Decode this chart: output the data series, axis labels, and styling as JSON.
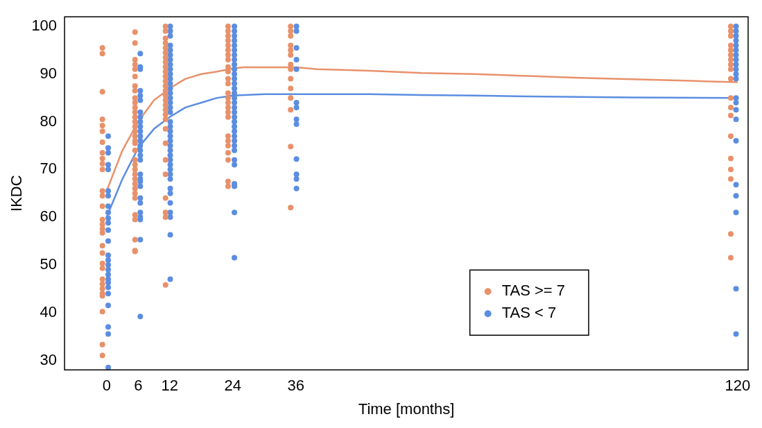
{
  "chart_data": {
    "type": "scatter",
    "xlabel": "Time [months]",
    "ylabel": "IKDC",
    "xlim": [
      -8,
      122
    ],
    "xticks": [
      0,
      6,
      12,
      24,
      36,
      120
    ],
    "ylim": [
      28,
      102
    ],
    "yticks": [
      30,
      40,
      50,
      60,
      70,
      80,
      90,
      100
    ],
    "grid": false,
    "legend": "bottom right",
    "marker": "circle",
    "series": [
      {
        "name": "TAS >= 7",
        "color": "#e8916a",
        "x": [
          -0.8,
          -0.8,
          -0.8,
          -0.8,
          -0.8,
          -0.8,
          -0.8,
          -0.8,
          -0.8,
          -0.8,
          -0.8,
          -0.8,
          -0.8,
          -0.8,
          -0.8,
          -0.8,
          -0.8,
          -0.8,
          -0.8,
          -0.8,
          -0.8,
          -0.8,
          -0.8,
          -0.8,
          -0.8,
          -0.8,
          -0.8,
          -0.8,
          -0.8,
          -0.8,
          5.4,
          5.4,
          5.4,
          5.4,
          5.4,
          5.4,
          5.4,
          5.4,
          5.4,
          5.4,
          5.4,
          5.4,
          5.4,
          5.4,
          5.4,
          5.4,
          5.4,
          5.4,
          5.4,
          5.4,
          5.4,
          5.4,
          5.4,
          5.4,
          5.4,
          5.4,
          5.4,
          5.4,
          5.4,
          5.4,
          5.4,
          5.4,
          5.4,
          5.4,
          11.2,
          11.2,
          11.2,
          11.2,
          11.2,
          11.2,
          11.2,
          11.2,
          11.2,
          11.2,
          11.2,
          11.2,
          11.2,
          11.2,
          11.2,
          11.2,
          11.2,
          11.2,
          11.2,
          11.2,
          11.2,
          11.2,
          11.2,
          11.2,
          11.2,
          11.2,
          11.2,
          11.2,
          23.1,
          23.1,
          23.1,
          23.1,
          23.1,
          23.1,
          23.1,
          23.1,
          23.1,
          23.1,
          23.1,
          23.1,
          23.1,
          23.1,
          23.1,
          23.1,
          23.1,
          23.1,
          23.1,
          23.1,
          23.1,
          23.1,
          23.1,
          23.1,
          23.1,
          35,
          35,
          35,
          35,
          35,
          35,
          35,
          35,
          35,
          35,
          35,
          35,
          35,
          35,
          118.7,
          118.7,
          118.7,
          118.7,
          118.7,
          118.7,
          118.7,
          118.7,
          118.7,
          118.7,
          118.7,
          118.7,
          118.7,
          118.7,
          118.7,
          118.7,
          118.7,
          118.7,
          118.7
        ],
        "values": [
          95.5,
          94.3,
          86.3,
          80.5,
          79.2,
          78,
          75.7,
          73.5,
          72.3,
          71.2,
          70,
          65.5,
          64.5,
          62.3,
          59.5,
          58.5,
          57.5,
          56.7,
          54,
          52.5,
          50.3,
          49.3,
          47,
          46,
          45,
          44,
          43.5,
          40.2,
          33.3,
          31,
          98.8,
          96.5,
          93,
          92,
          91,
          89.5,
          87.5,
          86.5,
          85,
          84,
          83,
          82,
          81,
          80,
          79,
          78,
          77,
          76,
          75.5,
          74,
          72,
          71,
          70,
          69,
          68,
          67,
          66,
          65,
          64,
          60.5,
          59.5,
          55.3,
          53,
          52.8,
          100,
          99,
          97.5,
          96.5,
          95.5,
          94.5,
          93.5,
          92.5,
          91.5,
          90.5,
          89.5,
          88.5,
          87.5,
          86.5,
          85.5,
          84.5,
          83.5,
          82.5,
          81.5,
          80.5,
          78.5,
          75.5,
          72,
          69,
          64,
          61,
          60,
          45.8,
          100,
          99,
          98,
          97,
          96,
          95,
          94,
          93,
          91.5,
          90.5,
          89,
          88,
          86,
          85,
          84,
          83,
          82,
          81,
          77,
          76,
          75,
          73.5,
          72,
          67.5,
          66.5,
          100,
          99,
          98,
          96,
          95,
          94,
          92,
          91,
          89,
          87,
          85,
          82.5,
          74.8,
          62,
          100,
          99,
          98,
          96,
          95,
          94,
          93,
          92,
          91,
          89,
          85,
          83,
          81.3,
          77,
          72.3,
          70,
          68,
          56.5,
          51.5
        ]
      },
      {
        "name": "TAS < 7",
        "color": "#5b8de0",
        "x": [
          0.3,
          0.3,
          0.3,
          0.3,
          0.3,
          0.3,
          0.3,
          0.3,
          0.3,
          0.3,
          0.3,
          0.3,
          0.3,
          0.3,
          0.3,
          0.3,
          0.3,
          0.3,
          0.3,
          0.3,
          0.3,
          0.3,
          0.3,
          0.3,
          0.3,
          0.3,
          6.4,
          6.4,
          6.4,
          6.4,
          6.4,
          6.4,
          6.4,
          6.4,
          6.4,
          6.4,
          6.4,
          6.4,
          6.4,
          6.4,
          6.4,
          6.4,
          6.4,
          6.4,
          6.4,
          6.4,
          6.4,
          6.4,
          6.4,
          6.4,
          6.4,
          6.4,
          6.4,
          6.4,
          12.1,
          12.1,
          12.1,
          12.1,
          12.1,
          12.1,
          12.1,
          12.1,
          12.1,
          12.1,
          12.1,
          12.1,
          12.1,
          12.1,
          12.1,
          12.1,
          12.1,
          12.1,
          12.1,
          12.1,
          12.1,
          12.1,
          12.1,
          12.1,
          12.1,
          12.1,
          12.1,
          12.1,
          12.1,
          12.1,
          12.1,
          12.1,
          12.1,
          12.1,
          12.1,
          12.1,
          12.1,
          12.1,
          24.3,
          24.3,
          24.3,
          24.3,
          24.3,
          24.3,
          24.3,
          24.3,
          24.3,
          24.3,
          24.3,
          24.3,
          24.3,
          24.3,
          24.3,
          24.3,
          24.3,
          24.3,
          24.3,
          24.3,
          24.3,
          24.3,
          24.3,
          24.3,
          24.3,
          24.3,
          24.3,
          24.3,
          24.3,
          24.3,
          24.3,
          24.3,
          24.3,
          36.1,
          36.1,
          36.1,
          36.1,
          36.1,
          36.1,
          36.1,
          36.1,
          36.1,
          36.1,
          36.1,
          36.1,
          36.1,
          119.7,
          119.7,
          119.7,
          119.7,
          119.7,
          119.7,
          119.7,
          119.7,
          119.7,
          119.7,
          119.7,
          119.7,
          119.7,
          119.7,
          119.7,
          119.7,
          119.7,
          119.7,
          119.7,
          119.7,
          119.7,
          119.7
        ],
        "values": [
          77,
          74.5,
          73.5,
          71,
          70,
          65.5,
          64.5,
          62.3,
          61,
          59.8,
          58.8,
          57.3,
          55,
          52,
          51,
          50,
          49,
          48,
          47,
          46.3,
          45.3,
          44,
          41.5,
          37,
          35.5,
          28.5,
          94.3,
          91.5,
          91,
          86.5,
          85.5,
          84.5,
          82,
          81,
          80,
          79,
          78,
          77,
          76,
          75,
          74,
          73,
          72,
          69,
          68,
          67.5,
          66.5,
          64,
          63,
          61,
          60,
          59.5,
          55.3,
          39.2,
          100,
          99,
          98,
          96,
          95,
          94,
          93,
          92,
          91,
          90,
          89,
          88,
          87,
          86,
          85,
          84,
          83,
          82,
          80,
          79,
          78,
          77,
          76,
          75,
          74,
          73,
          72,
          71,
          70,
          69,
          68,
          66,
          65,
          63,
          61,
          60,
          56.3,
          47,
          100,
          99,
          98,
          97,
          96,
          95,
          94,
          93,
          92,
          91,
          90,
          89,
          88,
          87,
          86,
          85,
          84,
          83,
          82,
          81,
          80,
          79,
          78,
          77,
          76,
          75,
          74,
          72,
          71,
          67,
          66.5,
          61,
          51.5,
          100,
          99,
          95.5,
          93,
          91,
          84,
          83,
          80.5,
          79.5,
          72.2,
          69,
          68,
          66,
          100,
          99,
          98,
          97,
          96,
          95,
          94,
          93,
          92,
          91,
          90,
          89,
          85,
          84,
          82.5,
          80.5,
          76,
          66.8,
          64.5,
          61,
          45,
          35.5
        ]
      },
      {
        "type": "line",
        "color": "#e8916a",
        "marker": "none",
        "x": [
          0,
          3,
          6,
          9,
          12,
          15,
          18,
          21,
          24,
          26,
          36,
          40,
          50,
          60,
          70,
          80,
          90,
          100,
          110,
          120
        ],
        "values": [
          65.5,
          74,
          80,
          84.5,
          87,
          89,
          90,
          90.5,
          91.2,
          91.4,
          91.4,
          91,
          90.7,
          90.2,
          90,
          89.6,
          89.2,
          88.9,
          88.6,
          88.3
        ]
      },
      {
        "type": "line",
        "color": "#5b8de0",
        "marker": "none",
        "x": [
          0,
          3,
          6,
          9,
          12,
          15,
          18,
          21,
          24,
          30,
          50,
          60,
          70,
          80,
          90,
          100,
          120
        ],
        "values": [
          60,
          68,
          74.5,
          78.5,
          81,
          83,
          84,
          85,
          85.5,
          85.8,
          85.8,
          85.6,
          85.5,
          85.3,
          85.2,
          85.1,
          85
        ]
      }
    ]
  }
}
